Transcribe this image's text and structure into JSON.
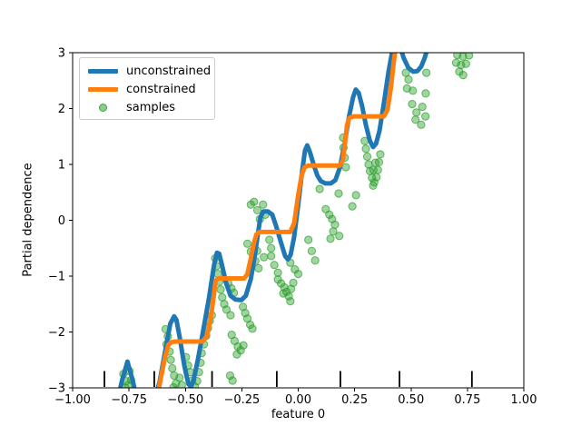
{
  "chart_data": {
    "type": "line",
    "title": "",
    "xlabel": "feature 0",
    "ylabel": "Partial dependence",
    "xlim": [
      -1.0,
      1.0
    ],
    "ylim": [
      -3.0,
      3.0
    ],
    "grid": false,
    "x_ticks": [
      -1.0,
      -0.75,
      -0.5,
      -0.25,
      0.0,
      0.25,
      0.5,
      0.75,
      1.0
    ],
    "x_tick_labels": [
      "−1.00",
      "−0.75",
      "−0.50",
      "−0.25",
      "0.00",
      "0.25",
      "0.50",
      "0.75",
      "1.00"
    ],
    "y_ticks": [
      -3,
      -2,
      -1,
      0,
      1,
      2,
      3
    ],
    "y_tick_labels": [
      "−3",
      "−2",
      "−1",
      "0",
      "1",
      "2",
      "3"
    ],
    "legend": {
      "position": "upper-left",
      "entries": [
        {
          "label": "unconstrained",
          "type": "line",
          "color": "#1f77b4"
        },
        {
          "label": "constrained",
          "type": "line",
          "color": "#ff7f0e"
        },
        {
          "label": "samples",
          "type": "marker",
          "color": "#2ca02c"
        }
      ]
    },
    "rug_marks": {
      "color": "#000000",
      "x": [
        -0.859,
        -0.638,
        -0.382,
        -0.095,
        0.187,
        0.449,
        0.77
      ]
    },
    "series": [
      {
        "name": "samples",
        "type": "scatter",
        "color": "#2ca02c",
        "alpha": 0.45,
        "points": [
          [
            -0.775,
            -2.75
          ],
          [
            -0.763,
            -2.88
          ],
          [
            -0.748,
            -2.7
          ],
          [
            -0.754,
            -2.95
          ],
          [
            -0.766,
            -3.0
          ],
          [
            -0.741,
            -2.86
          ],
          [
            -0.588,
            -1.95
          ],
          [
            -0.578,
            -2.08
          ],
          [
            -0.584,
            -2.22
          ],
          [
            -0.57,
            -2.35
          ],
          [
            -0.565,
            -2.5
          ],
          [
            -0.558,
            -2.65
          ],
          [
            -0.55,
            -2.78
          ],
          [
            -0.542,
            -2.92
          ],
          [
            -0.553,
            -2.99
          ],
          [
            -0.526,
            -2.82
          ],
          [
            -0.516,
            -2.95
          ],
          [
            -0.498,
            -2.45
          ],
          [
            -0.488,
            -2.6
          ],
          [
            -0.478,
            -2.72
          ],
          [
            -0.47,
            -2.87
          ],
          [
            -0.458,
            -2.98
          ],
          [
            -0.448,
            -2.88
          ],
          [
            -0.44,
            -2.72
          ],
          [
            -0.433,
            -2.55
          ],
          [
            -0.428,
            -2.38
          ],
          [
            -0.418,
            -2.22
          ],
          [
            -0.408,
            -2.07
          ],
          [
            -0.4,
            -1.93
          ],
          [
            -0.392,
            -1.8
          ],
          [
            -0.383,
            -1.7
          ],
          [
            -0.368,
            -0.68
          ],
          [
            -0.362,
            -0.82
          ],
          [
            -0.356,
            -0.96
          ],
          [
            -0.35,
            -1.1
          ],
          [
            -0.344,
            -1.24
          ],
          [
            -0.337,
            -1.38
          ],
          [
            -0.328,
            -1.5
          ],
          [
            -0.318,
            -1.6
          ],
          [
            -0.31,
            -1.13
          ],
          [
            -0.296,
            -1.22
          ],
          [
            -0.285,
            -1.3
          ],
          [
            -0.3,
            -1.7
          ],
          [
            -0.245,
            -1.55
          ],
          [
            -0.235,
            -1.66
          ],
          [
            -0.225,
            -1.76
          ],
          [
            -0.213,
            -1.87
          ],
          [
            -0.203,
            -1.94
          ],
          [
            -0.295,
            -2.05
          ],
          [
            -0.282,
            -2.16
          ],
          [
            -0.268,
            -2.26
          ],
          [
            -0.255,
            -2.33
          ],
          [
            -0.243,
            -2.24
          ],
          [
            -0.272,
            -2.4
          ],
          [
            -0.302,
            -2.78
          ],
          [
            -0.291,
            -2.87
          ],
          [
            -0.21,
            0.28
          ],
          [
            -0.196,
            0.33
          ],
          [
            -0.181,
            0.18
          ],
          [
            -0.156,
            0.28
          ],
          [
            -0.146,
            0.1
          ],
          [
            -0.17,
            0.02
          ],
          [
            -0.225,
            -0.42
          ],
          [
            -0.21,
            -0.56
          ],
          [
            -0.19,
            -0.73
          ],
          [
            -0.176,
            -0.86
          ],
          [
            -0.182,
            -0.55
          ],
          [
            -0.128,
            -0.35
          ],
          [
            -0.12,
            -0.5
          ],
          [
            -0.12,
            -0.64
          ],
          [
            -0.106,
            -0.8
          ],
          [
            -0.09,
            -0.94
          ],
          [
            -0.152,
            -0.66
          ],
          [
            -0.035,
            -0.76
          ],
          [
            -0.015,
            -0.88
          ],
          [
            0.0,
            -0.96
          ],
          [
            0.045,
            -0.35
          ],
          [
            0.06,
            -0.55
          ],
          [
            0.075,
            -0.72
          ],
          [
            -0.09,
            -1.06
          ],
          [
            -0.076,
            -1.13
          ],
          [
            -0.062,
            -1.2
          ],
          [
            -0.052,
            -1.28
          ],
          [
            -0.042,
            -1.36
          ],
          [
            -0.066,
            -1.31
          ],
          [
            -0.032,
            -1.23
          ],
          [
            -0.022,
            -1.12
          ],
          [
            -0.035,
            -1.45
          ],
          [
            0.095,
            0.56
          ],
          [
            0.179,
            0.48
          ],
          [
            0.122,
            0.2
          ],
          [
            0.138,
            0.1
          ],
          [
            0.15,
            0.02
          ],
          [
            0.163,
            -0.08
          ],
          [
            0.155,
            -0.2
          ],
          [
            0.182,
            -0.28
          ],
          [
            0.143,
            -0.33
          ],
          [
            0.24,
            0.25
          ],
          [
            0.256,
            0.45
          ],
          [
            0.199,
            1.48
          ],
          [
            0.201,
            1.3
          ],
          [
            0.206,
            1.12
          ],
          [
            0.211,
            0.95
          ],
          [
            0.295,
            1.42
          ],
          [
            0.3,
            1.28
          ],
          [
            0.306,
            1.14
          ],
          [
            0.312,
            1.0
          ],
          [
            0.318,
            0.88
          ],
          [
            0.327,
            0.76
          ],
          [
            0.337,
            0.68
          ],
          [
            0.347,
            0.77
          ],
          [
            0.353,
            0.9
          ],
          [
            0.358,
            1.04
          ],
          [
            0.364,
            1.18
          ],
          [
            0.333,
            0.9
          ],
          [
            0.342,
            1.03
          ],
          [
            0.332,
            0.62
          ],
          [
            0.477,
            2.64
          ],
          [
            0.489,
            2.52
          ],
          [
            0.568,
            2.64
          ],
          [
            0.482,
            2.36
          ],
          [
            0.508,
            2.32
          ],
          [
            0.565,
            2.27
          ],
          [
            0.505,
            2.08
          ],
          [
            0.524,
            1.93
          ],
          [
            0.55,
            2.03
          ],
          [
            0.564,
            1.86
          ],
          [
            0.52,
            1.8
          ],
          [
            0.545,
            1.71
          ],
          [
            0.705,
            2.96
          ],
          [
            0.73,
            2.93
          ],
          [
            0.757,
            2.95
          ],
          [
            0.7,
            2.82
          ],
          [
            0.722,
            2.78
          ],
          [
            0.744,
            2.8
          ],
          [
            0.714,
            2.66
          ],
          [
            0.731,
            2.6
          ]
        ]
      },
      {
        "name": "unconstrained",
        "type": "line",
        "color": "#1f77b4",
        "linewidth": 5,
        "points": [
          [
            -0.8,
            -3.2
          ],
          [
            -0.78,
            -2.85
          ],
          [
            -0.757,
            -2.53
          ],
          [
            -0.735,
            -2.85
          ],
          [
            -0.715,
            -3.2
          ],
          [
            -0.69,
            -3.45
          ],
          [
            -0.64,
            -3.25
          ],
          [
            -0.615,
            -2.9
          ],
          [
            -0.59,
            -2.35
          ],
          [
            -0.567,
            -1.85
          ],
          [
            -0.55,
            -1.72
          ],
          [
            -0.54,
            -1.78
          ],
          [
            -0.525,
            -2.1
          ],
          [
            -0.505,
            -2.6
          ],
          [
            -0.487,
            -2.93
          ],
          [
            -0.475,
            -2.98
          ],
          [
            -0.463,
            -2.85
          ],
          [
            -0.445,
            -2.5
          ],
          [
            -0.42,
            -1.95
          ],
          [
            -0.395,
            -1.38
          ],
          [
            -0.373,
            -0.8
          ],
          [
            -0.36,
            -0.58
          ],
          [
            -0.35,
            -0.6
          ],
          [
            -0.338,
            -0.8
          ],
          [
            -0.32,
            -1.12
          ],
          [
            -0.3,
            -1.35
          ],
          [
            -0.278,
            -1.42
          ],
          [
            -0.252,
            -1.43
          ],
          [
            -0.232,
            -1.35
          ],
          [
            -0.21,
            -1.05
          ],
          [
            -0.195,
            -0.7
          ],
          [
            -0.18,
            -0.28
          ],
          [
            -0.168,
            0.05
          ],
          [
            -0.155,
            0.16
          ],
          [
            -0.135,
            0.16
          ],
          [
            -0.115,
            0.1
          ],
          [
            -0.098,
            -0.1
          ],
          [
            -0.075,
            -0.42
          ],
          [
            -0.058,
            -0.64
          ],
          [
            -0.046,
            -0.7
          ],
          [
            -0.034,
            -0.62
          ],
          [
            -0.018,
            -0.3
          ],
          [
            0.0,
            0.28
          ],
          [
            0.018,
            0.9
          ],
          [
            0.03,
            1.25
          ],
          [
            0.04,
            1.34
          ],
          [
            0.052,
            1.22
          ],
          [
            0.068,
            1.0
          ],
          [
            0.085,
            0.8
          ],
          [
            0.1,
            0.7
          ],
          [
            0.12,
            0.66
          ],
          [
            0.145,
            0.66
          ],
          [
            0.165,
            0.72
          ],
          [
            0.185,
            0.95
          ],
          [
            0.205,
            1.35
          ],
          [
            0.225,
            1.85
          ],
          [
            0.243,
            2.2
          ],
          [
            0.255,
            2.34
          ],
          [
            0.268,
            2.28
          ],
          [
            0.283,
            2.05
          ],
          [
            0.3,
            1.7
          ],
          [
            0.318,
            1.42
          ],
          [
            0.332,
            1.31
          ],
          [
            0.345,
            1.37
          ],
          [
            0.36,
            1.6
          ],
          [
            0.38,
            2.1
          ],
          [
            0.4,
            2.65
          ],
          [
            0.42,
            3.1
          ],
          [
            0.435,
            3.3
          ],
          [
            0.452,
            3.1
          ],
          [
            0.468,
            2.9
          ],
          [
            0.488,
            2.73
          ],
          [
            0.51,
            2.66
          ],
          [
            0.528,
            2.67
          ],
          [
            0.545,
            2.75
          ],
          [
            0.56,
            2.9
          ],
          [
            0.575,
            3.1
          ],
          [
            0.6,
            3.5
          ]
        ]
      },
      {
        "name": "constrained",
        "type": "line",
        "color": "#ff7f0e",
        "linewidth": 5,
        "points": [
          [
            -0.625,
            -3.15
          ],
          [
            -0.61,
            -2.85
          ],
          [
            -0.592,
            -2.48
          ],
          [
            -0.576,
            -2.23
          ],
          [
            -0.562,
            -2.18
          ],
          [
            -0.54,
            -2.17
          ],
          [
            -0.425,
            -2.17
          ],
          [
            -0.405,
            -2.08
          ],
          [
            -0.39,
            -1.8
          ],
          [
            -0.376,
            -1.4
          ],
          [
            -0.366,
            -1.08
          ],
          [
            -0.355,
            -1.04
          ],
          [
            -0.24,
            -1.04
          ],
          [
            -0.226,
            -0.97
          ],
          [
            -0.212,
            -0.72
          ],
          [
            -0.197,
            -0.42
          ],
          [
            -0.185,
            -0.25
          ],
          [
            -0.172,
            -0.21
          ],
          [
            -0.035,
            -0.21
          ],
          [
            -0.018,
            -0.05
          ],
          [
            0.0,
            0.45
          ],
          [
            0.015,
            0.8
          ],
          [
            0.028,
            0.95
          ],
          [
            0.045,
            0.98
          ],
          [
            0.185,
            0.98
          ],
          [
            0.198,
            1.08
          ],
          [
            0.208,
            1.4
          ],
          [
            0.216,
            1.7
          ],
          [
            0.226,
            1.83
          ],
          [
            0.245,
            1.86
          ],
          [
            0.38,
            1.86
          ],
          [
            0.396,
            1.98
          ],
          [
            0.41,
            2.35
          ],
          [
            0.424,
            2.85
          ],
          [
            0.436,
            3.2
          ]
        ]
      }
    ]
  }
}
